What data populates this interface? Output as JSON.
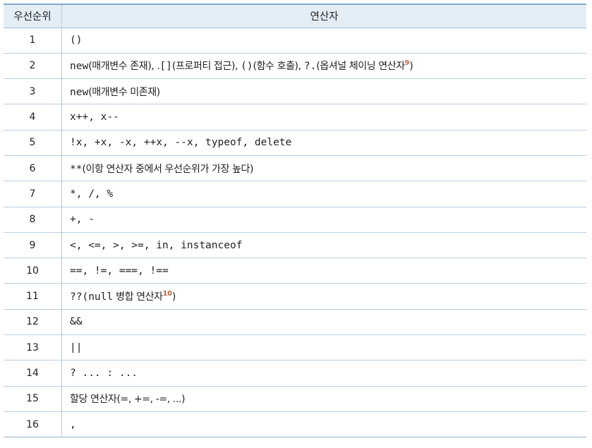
{
  "table": {
    "headers": {
      "rank": "우선순위",
      "operator": "연산자"
    },
    "footnote_color": "#c2633a",
    "rows": [
      {
        "rank": "1",
        "parts": [
          {
            "t": "()",
            "s": "mono"
          }
        ]
      },
      {
        "rank": "2",
        "parts": [
          {
            "t": "new",
            "s": "mono"
          },
          {
            "t": "(매개변수 존재), .",
            "s": "ko"
          },
          {
            "t": "[]",
            "s": "mono"
          },
          {
            "t": "(프로퍼티 접근), ",
            "s": "ko"
          },
          {
            "t": "()",
            "s": "mono"
          },
          {
            "t": "(함수 호출), ",
            "s": "ko"
          },
          {
            "t": "?.",
            "s": "mono"
          },
          {
            "t": "(옵셔널 체이닝 연산자",
            "s": "ko"
          },
          {
            "t": "9",
            "s": "fn"
          },
          {
            "t": ")",
            "s": "ko"
          }
        ]
      },
      {
        "rank": "3",
        "parts": [
          {
            "t": "new",
            "s": "mono"
          },
          {
            "t": "(매개변수 미존재)",
            "s": "ko"
          }
        ]
      },
      {
        "rank": "4",
        "parts": [
          {
            "t": "x++, x--",
            "s": "mono"
          }
        ]
      },
      {
        "rank": "5",
        "parts": [
          {
            "t": "!x, +x, -x, ++x, --x, typeof, delete",
            "s": "mono"
          }
        ]
      },
      {
        "rank": "6",
        "parts": [
          {
            "t": "**",
            "s": "mono"
          },
          {
            "t": "(이항 연산자 중에서 우선순위가 가장 높다)",
            "s": "ko"
          }
        ]
      },
      {
        "rank": "7",
        "parts": [
          {
            "t": "*, /, %",
            "s": "mono"
          }
        ]
      },
      {
        "rank": "8",
        "parts": [
          {
            "t": "+, -",
            "s": "mono"
          }
        ]
      },
      {
        "rank": "9",
        "parts": [
          {
            "t": "<, <=, >, >=, in, instanceof",
            "s": "mono"
          }
        ]
      },
      {
        "rank": "10",
        "parts": [
          {
            "t": "==, !=, ===, !==",
            "s": "mono"
          }
        ]
      },
      {
        "rank": "11",
        "parts": [
          {
            "t": "??(null",
            "s": "mono"
          },
          {
            "t": " 병합 연산자",
            "s": "ko"
          },
          {
            "t": "10",
            "s": "fn"
          },
          {
            "t": ")",
            "s": "ko"
          }
        ]
      },
      {
        "rank": "12",
        "parts": [
          {
            "t": "&&",
            "s": "mono"
          }
        ]
      },
      {
        "rank": "13",
        "parts": [
          {
            "t": "||",
            "s": "mono"
          }
        ]
      },
      {
        "rank": "14",
        "parts": [
          {
            "t": "? ... : ...",
            "s": "mono"
          }
        ]
      },
      {
        "rank": "15",
        "parts": [
          {
            "t": "할당 연산자",
            "s": "ko"
          },
          {
            "t": "(=, +=, -=, ...)",
            "s": "ko"
          }
        ]
      },
      {
        "rank": "16",
        "parts": [
          {
            "t": ",",
            "s": "mono"
          }
        ]
      }
    ]
  }
}
